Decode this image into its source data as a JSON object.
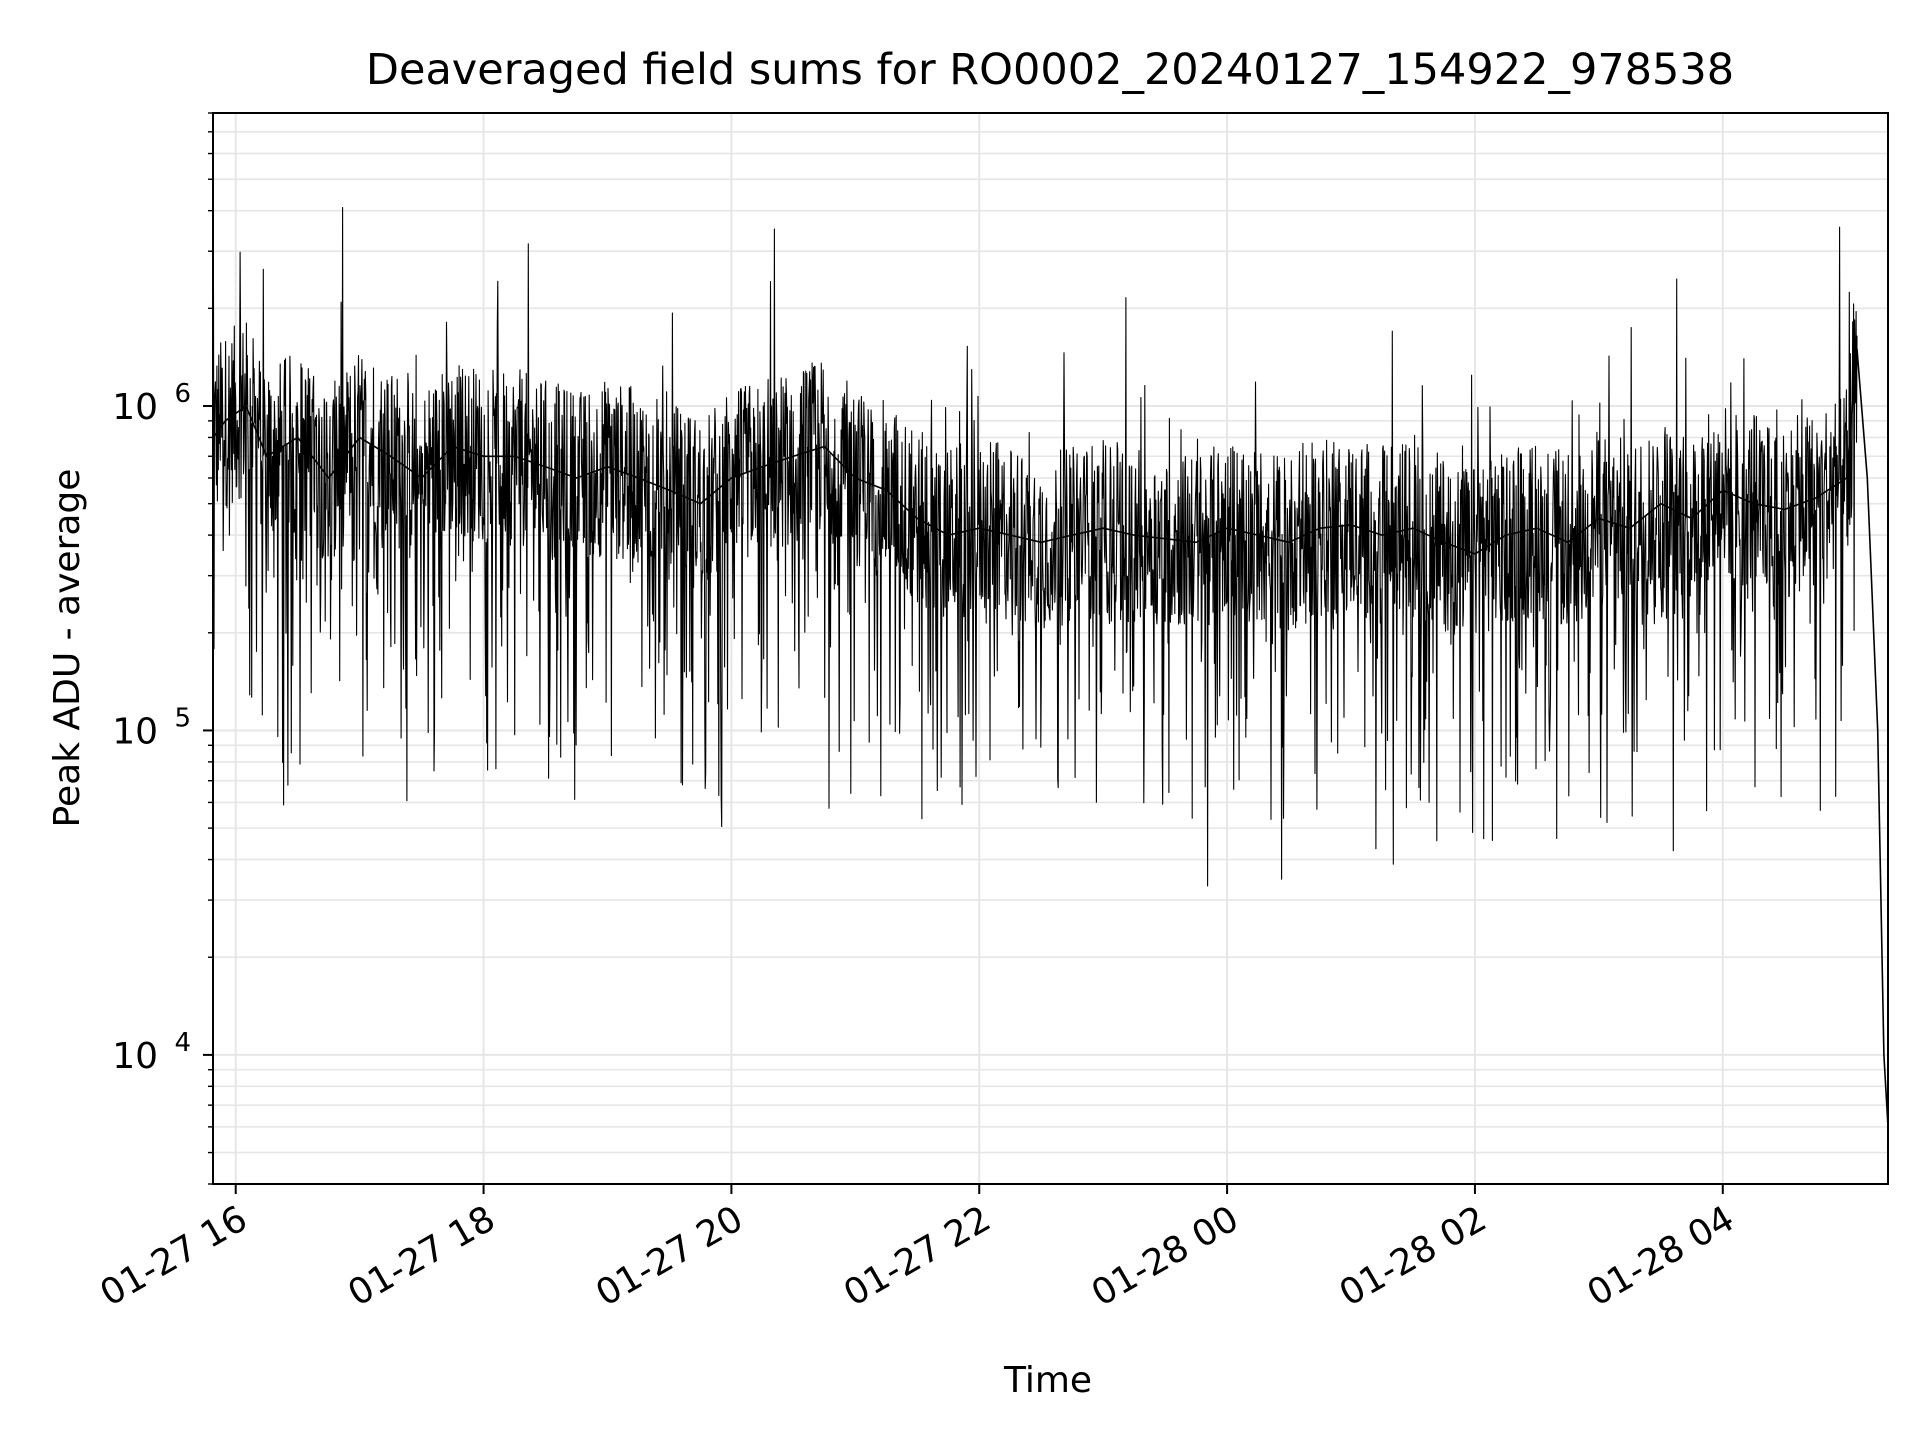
{
  "chart_data": {
    "type": "line",
    "title": "Deaveraged field sums for RO0002_20240127_154922_978538",
    "xlabel": "Time",
    "ylabel": "Peak ADU - average",
    "x_scale": "time",
    "y_scale": "log",
    "xlim": [
      "2024-01-27 15:49",
      "2024-01-28 05:20"
    ],
    "ylim": [
      4000,
      8000000
    ],
    "x_ticks": [
      {
        "value": "2024-01-27 16:00",
        "label": "01-27 16"
      },
      {
        "value": "2024-01-27 18:00",
        "label": "01-27 18"
      },
      {
        "value": "2024-01-27 20:00",
        "label": "01-27 20"
      },
      {
        "value": "2024-01-27 22:00",
        "label": "01-27 22"
      },
      {
        "value": "2024-01-28 00:00",
        "label": "01-28 00"
      },
      {
        "value": "2024-01-28 02:00",
        "label": "01-28 02"
      },
      {
        "value": "2024-01-28 04:00",
        "label": "01-28 04"
      }
    ],
    "y_ticks": [
      {
        "value": 10000,
        "base": "10",
        "exp": "4"
      },
      {
        "value": 100000,
        "base": "10",
        "exp": "5"
      },
      {
        "value": 1000000,
        "base": "10",
        "exp": "6"
      }
    ],
    "grid": true,
    "line_color": "#000000",
    "grid_color": "#e6e6e6",
    "series": [
      {
        "x": [
          "2024-01-27 15:49",
          "2024-01-27 15:55",
          "2024-01-27 16:05",
          "2024-01-27 16:15",
          "2024-01-27 16:30",
          "2024-01-27 16:45",
          "2024-01-27 17:00",
          "2024-01-27 17:15",
          "2024-01-27 17:30",
          "2024-01-27 17:45",
          "2024-01-27 18:00",
          "2024-01-27 18:15",
          "2024-01-27 18:30",
          "2024-01-27 18:45",
          "2024-01-27 19:00",
          "2024-01-27 19:15",
          "2024-01-27 19:30",
          "2024-01-27 19:45",
          "2024-01-27 20:00",
          "2024-01-27 20:15",
          "2024-01-27 20:30",
          "2024-01-27 20:45",
          "2024-01-27 21:00",
          "2024-01-27 21:15",
          "2024-01-27 21:30",
          "2024-01-27 21:45",
          "2024-01-27 22:00",
          "2024-01-27 22:15",
          "2024-01-27 22:30",
          "2024-01-27 22:45",
          "2024-01-27 23:00",
          "2024-01-27 23:15",
          "2024-01-27 23:30",
          "2024-01-27 23:45",
          "2024-01-28 00:00",
          "2024-01-28 00:15",
          "2024-01-28 00:30",
          "2024-01-28 00:45",
          "2024-01-28 01:00",
          "2024-01-28 01:15",
          "2024-01-28 01:30",
          "2024-01-28 01:45",
          "2024-01-28 02:00",
          "2024-01-28 02:15",
          "2024-01-28 02:30",
          "2024-01-28 02:45",
          "2024-01-28 03:00",
          "2024-01-28 03:15",
          "2024-01-28 03:30",
          "2024-01-28 03:45",
          "2024-01-28 04:00",
          "2024-01-28 04:15",
          "2024-01-28 04:30",
          "2024-01-28 04:45",
          "2024-01-28 05:00",
          "2024-01-28 05:05",
          "2024-01-28 05:10",
          "2024-01-28 05:15",
          "2024-01-28 05:18",
          "2024-01-28 05:20"
        ],
        "y": [
          800000,
          900000,
          1000000,
          700000,
          800000,
          600000,
          800000,
          700000,
          600000,
          750000,
          700000,
          700000,
          650000,
          600000,
          650000,
          600000,
          550000,
          500000,
          600000,
          650000,
          700000,
          750000,
          600000,
          550000,
          450000,
          400000,
          420000,
          400000,
          380000,
          400000,
          420000,
          400000,
          390000,
          380000,
          420000,
          400000,
          380000,
          420000,
          430000,
          400000,
          420000,
          380000,
          350000,
          400000,
          420000,
          380000,
          450000,
          420000,
          500000,
          450000,
          550000,
          500000,
          480000,
          520000,
          600000,
          1500000,
          600000,
          100000,
          10000,
          6000
        ]
      }
    ]
  }
}
